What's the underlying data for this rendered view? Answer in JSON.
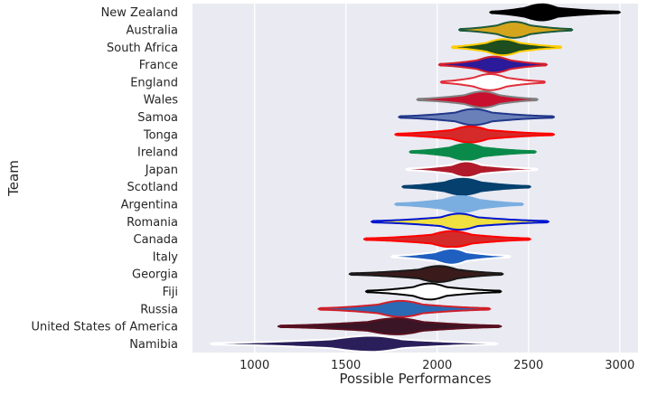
{
  "chart_data": {
    "type": "violin",
    "title": "",
    "xlabel": "Possible Performances",
    "ylabel": "Team",
    "xlim": [
      660,
      3100
    ],
    "xticks": [
      1000,
      1500,
      2000,
      2500,
      3000
    ],
    "grid": true,
    "orientation": "horizontal",
    "teams": [
      {
        "name": "New Zealand",
        "min": 2290,
        "q1": 2480,
        "median": 2575,
        "q3": 2660,
        "max": 3000,
        "fill": "#000000",
        "edge": "#000000"
      },
      {
        "name": "Australia",
        "min": 2120,
        "q1": 2330,
        "median": 2420,
        "q3": 2510,
        "max": 2740,
        "fill": "#d4a51c",
        "edge": "#1d5a3c"
      },
      {
        "name": "South Africa",
        "min": 2080,
        "q1": 2270,
        "median": 2360,
        "q3": 2450,
        "max": 2680,
        "fill": "#1e4d1e",
        "edge": "#ffcc00"
      },
      {
        "name": "France",
        "min": 2010,
        "q1": 2220,
        "median": 2310,
        "q3": 2400,
        "max": 2600,
        "fill": "#2b1a99",
        "edge": "#d4202e"
      },
      {
        "name": "England",
        "min": 2020,
        "q1": 2200,
        "median": 2290,
        "q3": 2380,
        "max": 2590,
        "fill": "#ffffff",
        "edge": "#e0303b"
      },
      {
        "name": "Wales",
        "min": 1890,
        "q1": 2150,
        "median": 2250,
        "q3": 2340,
        "max": 2550,
        "fill": "#c8102e",
        "edge": "#808080"
      },
      {
        "name": "Samoa",
        "min": 1790,
        "q1": 2100,
        "median": 2200,
        "q3": 2300,
        "max": 2640,
        "fill": "#6a80b8",
        "edge": "#21378a"
      },
      {
        "name": "Tonga",
        "min": 1770,
        "q1": 2080,
        "median": 2180,
        "q3": 2280,
        "max": 2640,
        "fill": "#d42a2a",
        "edge": "#ff0000"
      },
      {
        "name": "Ireland",
        "min": 1850,
        "q1": 2070,
        "median": 2160,
        "q3": 2250,
        "max": 2540,
        "fill": "#0a8a4a",
        "edge": "#0a8a4a"
      },
      {
        "name": "Japan",
        "min": 1830,
        "q1": 2080,
        "median": 2160,
        "q3": 2240,
        "max": 2550,
        "fill": "#b01a2a",
        "edge": "#ffffff"
      },
      {
        "name": "Scotland",
        "min": 1810,
        "q1": 2040,
        "median": 2140,
        "q3": 2240,
        "max": 2510,
        "fill": "#05406e",
        "edge": "#05406e"
      },
      {
        "name": "Argentina",
        "min": 1770,
        "q1": 2030,
        "median": 2130,
        "q3": 2230,
        "max": 2470,
        "fill": "#7aaee0",
        "edge": "#7aaee0"
      },
      {
        "name": "Romania",
        "min": 1640,
        "q1": 2020,
        "median": 2120,
        "q3": 2220,
        "max": 2610,
        "fill": "#f0e040",
        "edge": "#0015d0"
      },
      {
        "name": "Canada",
        "min": 1600,
        "q1": 1970,
        "median": 2080,
        "q3": 2190,
        "max": 2510,
        "fill": "#d42a2a",
        "edge": "#ff0000"
      },
      {
        "name": "Italy",
        "min": 1750,
        "q1": 1990,
        "median": 2080,
        "q3": 2160,
        "max": 2400,
        "fill": "#1f5fc0",
        "edge": "#ffffff"
      },
      {
        "name": "Georgia",
        "min": 1520,
        "q1": 1900,
        "median": 2010,
        "q3": 2110,
        "max": 2360,
        "fill": "#3a1a1a",
        "edge": "#1a1a1a"
      },
      {
        "name": "Fiji",
        "min": 1610,
        "q1": 1870,
        "median": 1960,
        "q3": 2050,
        "max": 2350,
        "fill": "#ffffff",
        "edge": "#000000"
      },
      {
        "name": "Russia",
        "min": 1350,
        "q1": 1680,
        "median": 1800,
        "q3": 1920,
        "max": 2290,
        "fill": "#2a6ab4",
        "edge": "#d0202a"
      },
      {
        "name": "United States of America",
        "min": 1130,
        "q1": 1620,
        "median": 1780,
        "q3": 1920,
        "max": 2350,
        "fill": "#3a1525",
        "edge": "#5a1020"
      },
      {
        "name": "Namibia",
        "min": 760,
        "q1": 1420,
        "median": 1640,
        "q3": 1810,
        "max": 2330,
        "fill": "#2a1f5a",
        "edge": "#ffffff"
      }
    ],
    "colors": {
      "plot_background": "#eaeaf2",
      "grid": "#ffffff",
      "text": "#262626"
    }
  }
}
